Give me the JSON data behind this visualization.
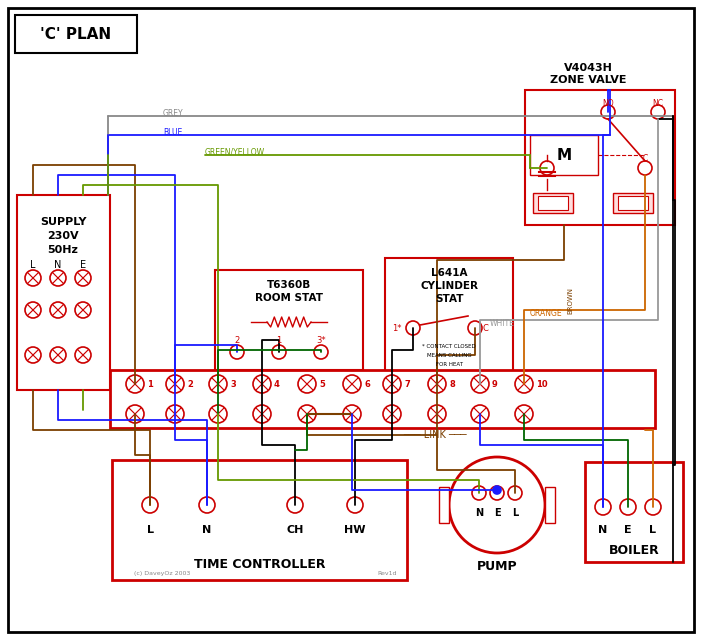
{
  "title": "'C' PLAN",
  "red": "#cc0000",
  "blue": "#1a1aff",
  "green": "#006600",
  "brown": "#7B3F00",
  "grey": "#888888",
  "orange": "#cc6600",
  "black": "#000000",
  "gy": "#669900",
  "white_wire": "#999999",
  "zone_valve_title": [
    "V4043H",
    "ZONE VALVE"
  ],
  "room_stat_title": [
    "T6360B",
    "ROOM STAT"
  ],
  "cyl_stat_title": [
    "L641A",
    "CYLINDER",
    "STAT"
  ],
  "terminal_numbers": [
    "1",
    "2",
    "3",
    "4",
    "5",
    "6",
    "7",
    "8",
    "9",
    "10"
  ],
  "time_ctrl_label": "TIME CONTROLLER",
  "pump_label": "PUMP",
  "boiler_label": "BOILER",
  "link_label": "LINK",
  "tc_terminals": [
    "L",
    "N",
    "CH",
    "HW"
  ],
  "copyright": "(c) DaveyOz 2003",
  "rev": "Rev1d"
}
